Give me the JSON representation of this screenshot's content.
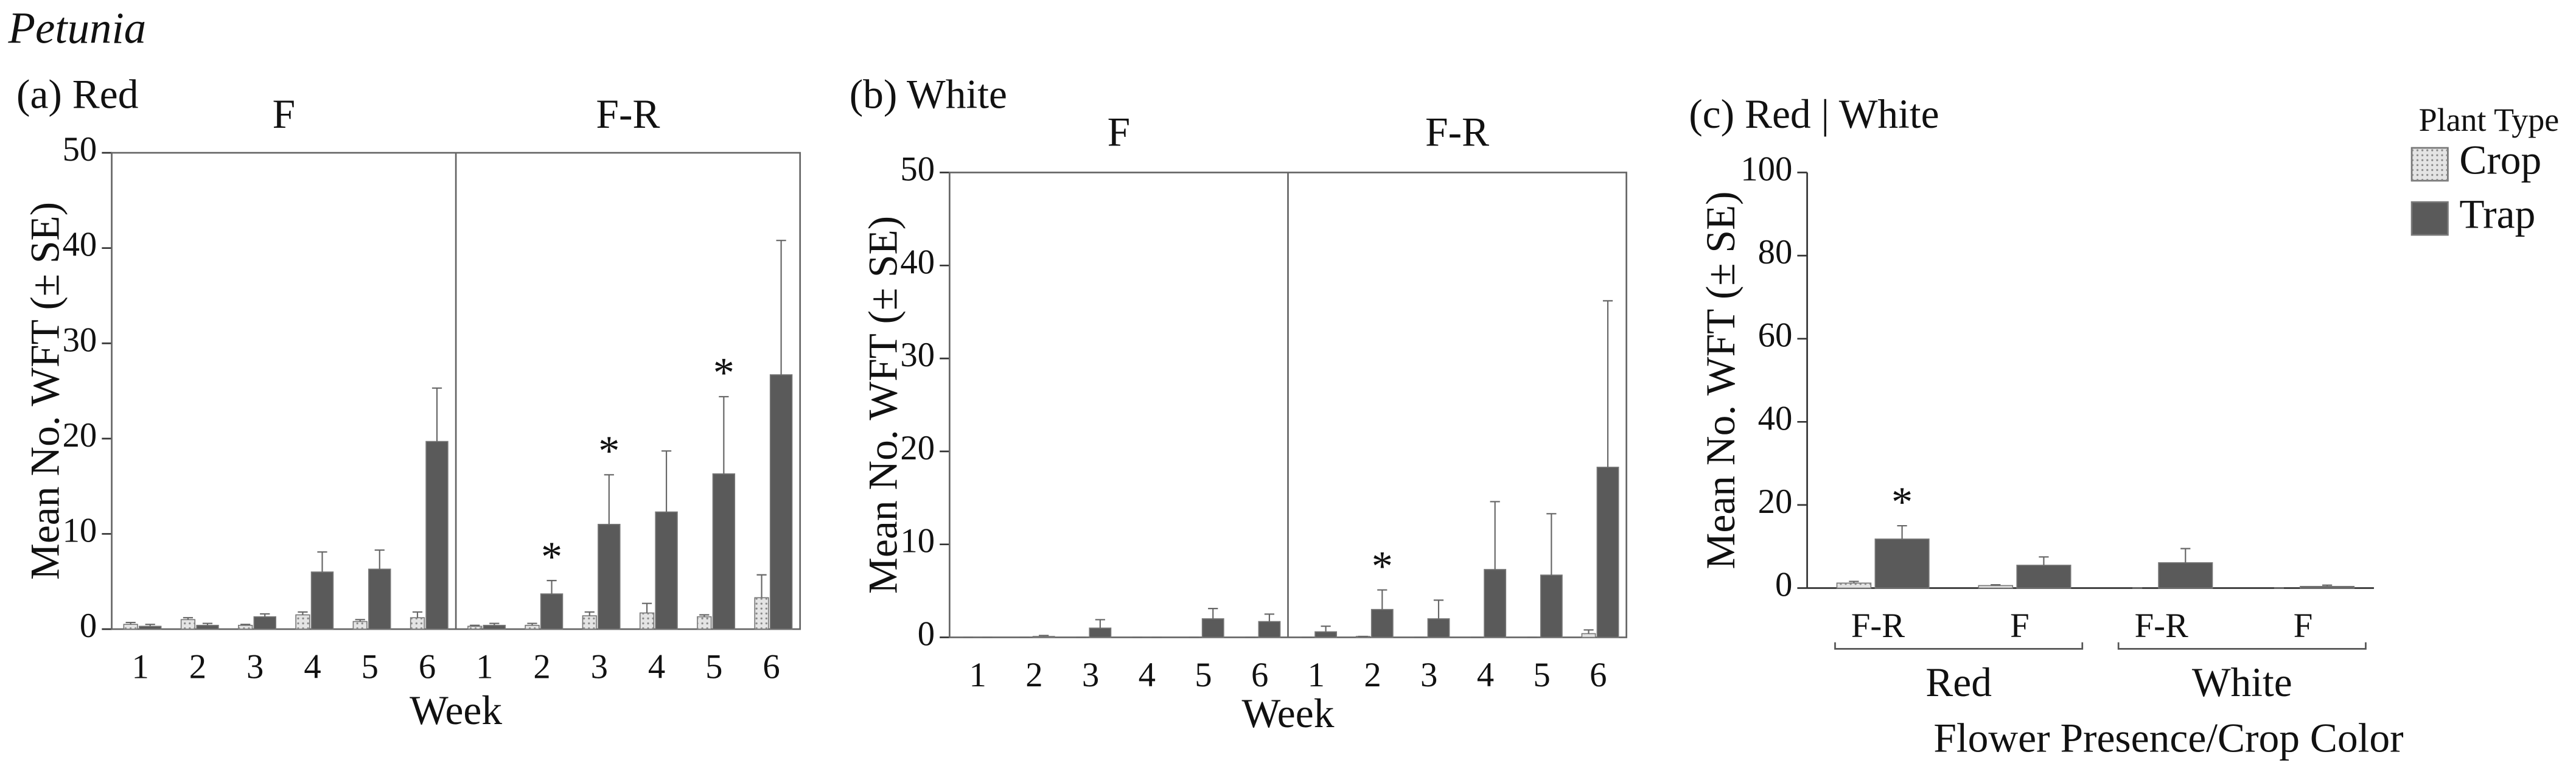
{
  "title": "Petunia",
  "legend_title": "Plant Type",
  "series": [
    {
      "name": "Crop",
      "color": "#e4e4e4"
    },
    {
      "name": "Trap",
      "color": "#5a5a5a"
    }
  ],
  "chart_data": [
    {
      "type": "bar",
      "title": "(a) Red",
      "ylabel": "Mean No. WFT (± SE)",
      "xlabel": "Week",
      "ylim": [
        0,
        50
      ],
      "yticks": [
        0,
        10,
        20,
        30,
        40,
        50
      ],
      "facet_label_position": "top",
      "facets": [
        {
          "label": "F",
          "categories": [
            "1",
            "2",
            "3",
            "4",
            "5",
            "6"
          ],
          "values": [
            [
              0.5,
              1.0,
              0.4,
              1.5,
              0.8,
              1.2
            ],
            [
              0.3,
              0.4,
              1.3,
              6.0,
              6.3,
              19.7
            ]
          ],
          "errors": [
            [
              0.2,
              0.2,
              0.1,
              0.3,
              0.2,
              0.6
            ],
            [
              0.2,
              0.2,
              0.3,
              2.1,
              2.0,
              5.6
            ]
          ],
          "significance": [
            null,
            null,
            null,
            null,
            null,
            null
          ]
        },
        {
          "label": "F-R",
          "categories": [
            "1",
            "2",
            "3",
            "4",
            "5",
            "6"
          ],
          "values": [
            [
              0.3,
              0.4,
              1.4,
              1.7,
              1.3,
              3.3
            ],
            [
              0.4,
              3.7,
              11.0,
              12.3,
              16.3,
              26.7
            ]
          ],
          "errors": [
            [
              0.1,
              0.2,
              0.4,
              1.0,
              0.2,
              2.4
            ],
            [
              0.2,
              1.4,
              5.2,
              6.4,
              8.1,
              14.1
            ]
          ],
          "significance": [
            null,
            "*",
            "*",
            null,
            "*",
            null
          ]
        }
      ]
    },
    {
      "type": "bar",
      "title": "(b) White",
      "ylabel": "Mean No. WFT (± SE)",
      "xlabel": "Week",
      "ylim": [
        0,
        50
      ],
      "yticks": [
        0,
        10,
        20,
        30,
        40,
        50
      ],
      "facet_label_position": "top",
      "facets": [
        {
          "label": "F",
          "categories": [
            "1",
            "2",
            "3",
            "4",
            "5",
            "6"
          ],
          "values": [
            [
              0,
              0,
              0,
              0,
              0,
              0
            ],
            [
              0,
              0.1,
              1.0,
              0,
              2.0,
              1.7
            ]
          ],
          "errors": [
            [
              0,
              0,
              0,
              0,
              0,
              0
            ],
            [
              0,
              0.1,
              0.9,
              0,
              1.1,
              0.8
            ]
          ],
          "significance": [
            null,
            null,
            null,
            null,
            null,
            null
          ]
        },
        {
          "label": "F-R",
          "categories": [
            "1",
            "2",
            "3",
            "4",
            "5",
            "6"
          ],
          "values": [
            [
              0,
              0.1,
              0,
              0,
              0,
              0.4
            ],
            [
              0.6,
              3.0,
              2.0,
              7.3,
              6.7,
              18.3
            ]
          ],
          "errors": [
            [
              0,
              0,
              0,
              0,
              0,
              0.4
            ],
            [
              0.6,
              2.1,
              2.0,
              7.3,
              6.6,
              17.9
            ]
          ],
          "significance": [
            null,
            "*",
            null,
            null,
            null,
            null
          ]
        }
      ]
    },
    {
      "type": "bar",
      "title": "(c) Red | White",
      "ylabel": "Mean No. WFT (± SE)",
      "xlabel": "Flower Presence/Crop Color",
      "ylim": [
        0,
        100
      ],
      "yticks": [
        0,
        20,
        40,
        60,
        80,
        100
      ],
      "facet_label_position": "bottom",
      "facets": [
        {
          "label": "Red",
          "categories": [
            "F-R",
            "F"
          ],
          "values": [
            [
              1.2,
              0.6
            ],
            [
              11.8,
              5.5
            ]
          ],
          "errors": [
            [
              0.4,
              0.2
            ],
            [
              3.2,
              2.0
            ]
          ],
          "significance": [
            "*",
            null
          ]
        },
        {
          "label": "White",
          "categories": [
            "F-R",
            "F"
          ],
          "values": [
            [
              0,
              0
            ],
            [
              6.1,
              0.4
            ]
          ],
          "errors": [
            [
              0,
              0
            ],
            [
              3.4,
              0.3
            ]
          ],
          "significance": [
            null,
            null
          ]
        }
      ]
    }
  ]
}
